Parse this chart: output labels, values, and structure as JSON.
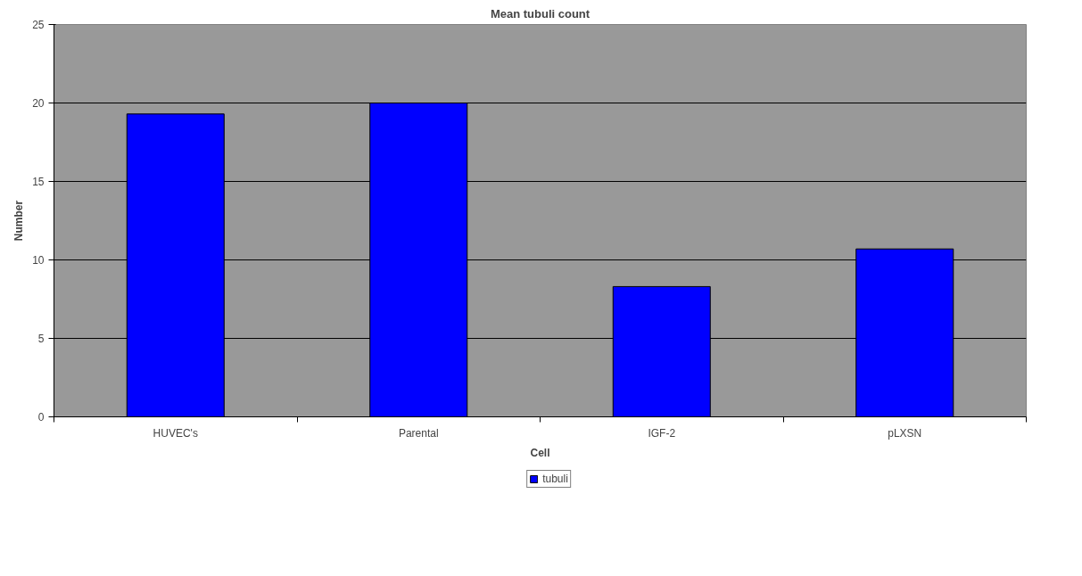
{
  "chart_data": {
    "type": "bar",
    "title": "Mean tubuli count",
    "xlabel": "Cell",
    "ylabel": "Number",
    "categories": [
      "HUVEC's",
      "Parental",
      "IGF-2",
      "pLXSN"
    ],
    "series": [
      {
        "name": "tubuli",
        "color": "#0000ff",
        "values": [
          19.3,
          20.0,
          8.3,
          10.7
        ]
      }
    ],
    "ylim": [
      0,
      25
    ],
    "yticks": [
      0,
      5,
      10,
      15,
      20,
      25
    ],
    "grid": "y",
    "legend": "bottom"
  }
}
